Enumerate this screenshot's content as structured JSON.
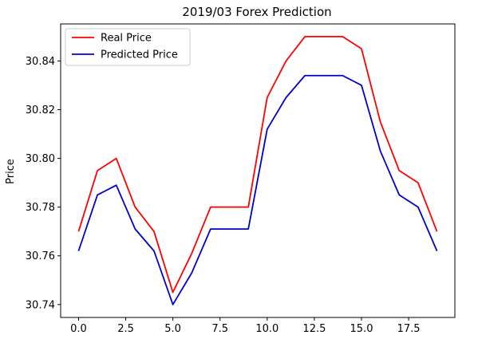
{
  "chart_data": {
    "type": "line",
    "title": "2019/03 Forex Prediction",
    "xlabel": "",
    "ylabel": "Price",
    "x": [
      0,
      1,
      2,
      3,
      4,
      5,
      6,
      7,
      8,
      9,
      10,
      11,
      12,
      13,
      14,
      15,
      16,
      17,
      18,
      19
    ],
    "xlim": [
      -0.95,
      19.95
    ],
    "ylim": [
      30.7347,
      30.8552
    ],
    "xticks": [
      0.0,
      2.5,
      5.0,
      7.5,
      10.0,
      12.5,
      15.0,
      17.5
    ],
    "xtick_labels": [
      "0.0",
      "2.5",
      "5.0",
      "7.5",
      "10.0",
      "12.5",
      "15.0",
      "17.5"
    ],
    "yticks": [
      30.74,
      30.76,
      30.78,
      30.8,
      30.82,
      30.84
    ],
    "ytick_labels": [
      "30.74",
      "30.76",
      "30.78",
      "30.80",
      "30.82",
      "30.84"
    ],
    "grid": false,
    "legend_position": "top-left",
    "series": [
      {
        "name": "Real Price",
        "color": "#ff0000",
        "values": [
          30.77,
          30.795,
          30.8,
          30.78,
          30.77,
          30.745,
          30.761,
          30.78,
          30.78,
          30.78,
          30.825,
          30.84,
          30.85,
          30.85,
          30.85,
          30.845,
          30.815,
          30.795,
          30.79,
          30.77
        ]
      },
      {
        "name": "Predicted Price",
        "color": "#0000cc",
        "values": [
          30.762,
          30.785,
          30.789,
          30.771,
          30.762,
          30.74,
          30.753,
          30.771,
          30.771,
          30.771,
          30.812,
          30.825,
          30.834,
          30.834,
          30.834,
          30.83,
          30.803,
          30.785,
          30.78,
          30.762
        ]
      }
    ]
  }
}
